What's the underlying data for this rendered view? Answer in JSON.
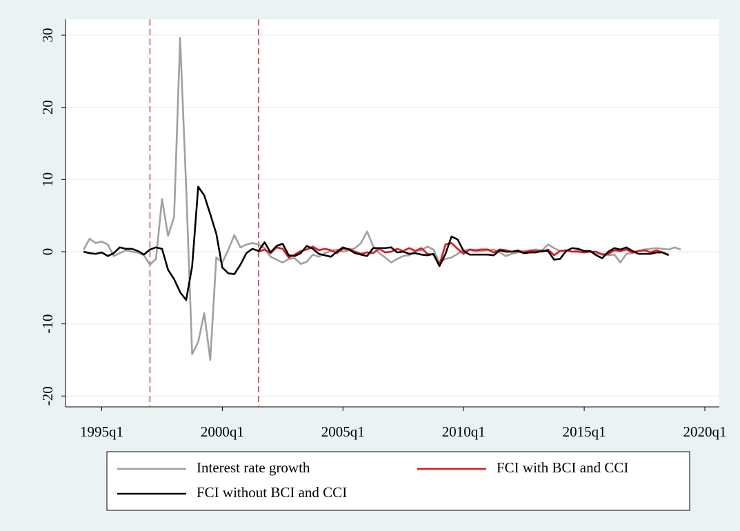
{
  "chart_data": {
    "type": "line",
    "x": [
      137,
      138,
      139,
      140,
      141,
      142,
      143,
      144,
      145,
      146,
      147,
      148,
      149,
      150,
      151,
      152,
      153,
      154,
      155,
      156,
      157,
      158,
      159,
      160,
      161,
      162,
      163,
      164,
      165,
      166,
      167,
      168,
      169,
      170,
      171,
      172,
      173,
      174,
      175,
      176,
      177,
      178,
      179,
      180,
      181,
      182,
      183,
      184,
      185,
      186,
      187,
      188,
      189,
      190,
      191,
      192,
      193,
      194,
      195,
      196,
      197,
      198,
      199,
      200,
      201,
      202,
      203,
      204,
      205,
      206,
      207,
      208,
      209,
      210,
      211,
      212,
      213,
      214,
      215,
      216,
      217,
      218,
      219,
      220,
      221,
      222,
      223,
      224,
      225,
      226,
      227,
      228,
      229,
      230,
      231,
      232,
      233,
      234,
      235,
      236
    ],
    "series": [
      {
        "name": "Interest rate growth",
        "color": "#a0a0a0",
        "values": [
          0.3,
          1.8,
          1.2,
          1.4,
          1.0,
          -0.6,
          -0.2,
          0.2,
          0.0,
          -0.1,
          -0.5,
          -1.8,
          -1.0,
          7.3,
          2.2,
          4.8,
          29.6,
          9.0,
          -14.2,
          -12.5,
          -8.5,
          -15.0,
          -0.8,
          -1.5,
          0.3,
          2.3,
          0.6,
          1.0,
          1.2,
          1.0,
          0.5,
          -0.7,
          -1.1,
          -1.5,
          -1.0,
          -0.9,
          -1.7,
          -1.4,
          -0.4,
          -0.7,
          -0.2,
          0.1,
          0.3,
          0.0,
          0.2,
          0.5,
          1.2,
          2.8,
          0.8,
          -0.2,
          -0.8,
          -1.5,
          -1.0,
          -0.6,
          -0.5,
          0.1,
          0.2,
          0.7,
          0.3,
          -1.5,
          -1.0,
          -0.8,
          -0.3,
          0.2,
          0.3,
          0.0,
          0.1,
          0.2,
          0.3,
          -0.1,
          -0.6,
          -0.3,
          -0.1,
          0.1,
          0.2,
          0.3,
          0.2,
          1.0,
          0.5,
          0.1,
          0.2,
          0.0,
          0.2,
          0.1,
          0.0,
          -0.3,
          -0.3,
          -0.5,
          -0.4,
          -1.5,
          -0.3,
          -0.2,
          0.1,
          0.3,
          0.4,
          0.5,
          0.4,
          0.3,
          0.6,
          0.3
        ]
      },
      {
        "name": "FCI with BCI and CCI",
        "color": "#e8141a",
        "values": [
          null,
          null,
          null,
          null,
          null,
          null,
          null,
          null,
          null,
          null,
          null,
          null,
          null,
          null,
          null,
          null,
          null,
          null,
          null,
          null,
          null,
          null,
          null,
          null,
          null,
          null,
          null,
          null,
          null,
          0.0,
          0.3,
          -0.2,
          0.6,
          0.4,
          -0.8,
          -0.4,
          0.1,
          0.3,
          0.7,
          0.2,
          0.4,
          0.2,
          -0.2,
          0.4,
          0.4,
          0.0,
          -0.3,
          -0.1,
          -0.2,
          0.4,
          -0.1,
          0.0,
          0.4,
          0.1,
          0.5,
          0.1,
          0.5,
          -0.3,
          -0.4,
          -1.8,
          1.0,
          1.2,
          0.4,
          -0.3,
          0.3,
          0.2,
          0.3,
          0.3,
          -0.1,
          0.3,
          0.2,
          0.0,
          0.2,
          -0.1,
          0.1,
          0.1,
          0.0,
          0.3,
          -0.5,
          0.1,
          0.2,
          0.0,
          0.0,
          -0.1,
          0.0,
          0.0,
          -0.4,
          -0.3,
          0.2,
          0.1,
          0.3,
          -0.1,
          0.1,
          0.2,
          -0.1,
          0.2,
          -0.1,
          -0.4,
          null,
          null
        ]
      },
      {
        "name": "FCI without BCI and CCI",
        "color": "#000000",
        "values": [
          0.0,
          -0.2,
          -0.3,
          -0.1,
          -0.6,
          -0.2,
          0.6,
          0.4,
          0.4,
          0.1,
          -0.4,
          0.3,
          0.6,
          0.4,
          -2.5,
          -3.8,
          -5.6,
          -6.7,
          -2.0,
          9.0,
          7.8,
          5.2,
          2.5,
          -2.2,
          -3.0,
          -3.1,
          -1.8,
          -0.2,
          0.4,
          0.1,
          1.3,
          -0.1,
          0.8,
          1.1,
          -0.5,
          -0.6,
          -0.2,
          0.8,
          0.4,
          -0.3,
          -0.5,
          -0.7,
          0.0,
          0.6,
          0.3,
          -0.2,
          -0.4,
          -0.6,
          0.5,
          0.5,
          0.5,
          0.6,
          -0.1,
          0.0,
          -0.3,
          -0.2,
          -0.4,
          -0.5,
          -0.3,
          -2.0,
          -0.3,
          2.1,
          1.7,
          0.1,
          -0.4,
          -0.4,
          -0.4,
          -0.4,
          -0.5,
          0.2,
          0.0,
          0.0,
          0.1,
          -0.2,
          -0.1,
          -0.1,
          0.1,
          0.1,
          -1.1,
          -1.0,
          0.1,
          0.5,
          0.4,
          0.1,
          0.1,
          -0.5,
          -0.9,
          0.0,
          0.5,
          0.3,
          0.6,
          0.1,
          -0.3,
          -0.3,
          -0.3,
          -0.1,
          -0.1,
          -0.5,
          null,
          null
        ]
      }
    ],
    "xlim": [
      134,
      242.4
    ],
    "xticks": [
      {
        "value": 140,
        "label": "1995q1"
      },
      {
        "value": 160,
        "label": "2000q1"
      },
      {
        "value": 180,
        "label": "2005q1"
      },
      {
        "value": 200,
        "label": "2010q1"
      },
      {
        "value": 220,
        "label": "2015q1"
      },
      {
        "value": 240,
        "label": "2020q1"
      }
    ],
    "ylim": [
      -21.5,
      32.2
    ],
    "yticks": [
      -20,
      -10,
      0,
      10,
      20,
      30
    ],
    "vlines": [
      148,
      166
    ],
    "vline_color": "#e8141a",
    "grid": true,
    "legend": "bottom"
  }
}
